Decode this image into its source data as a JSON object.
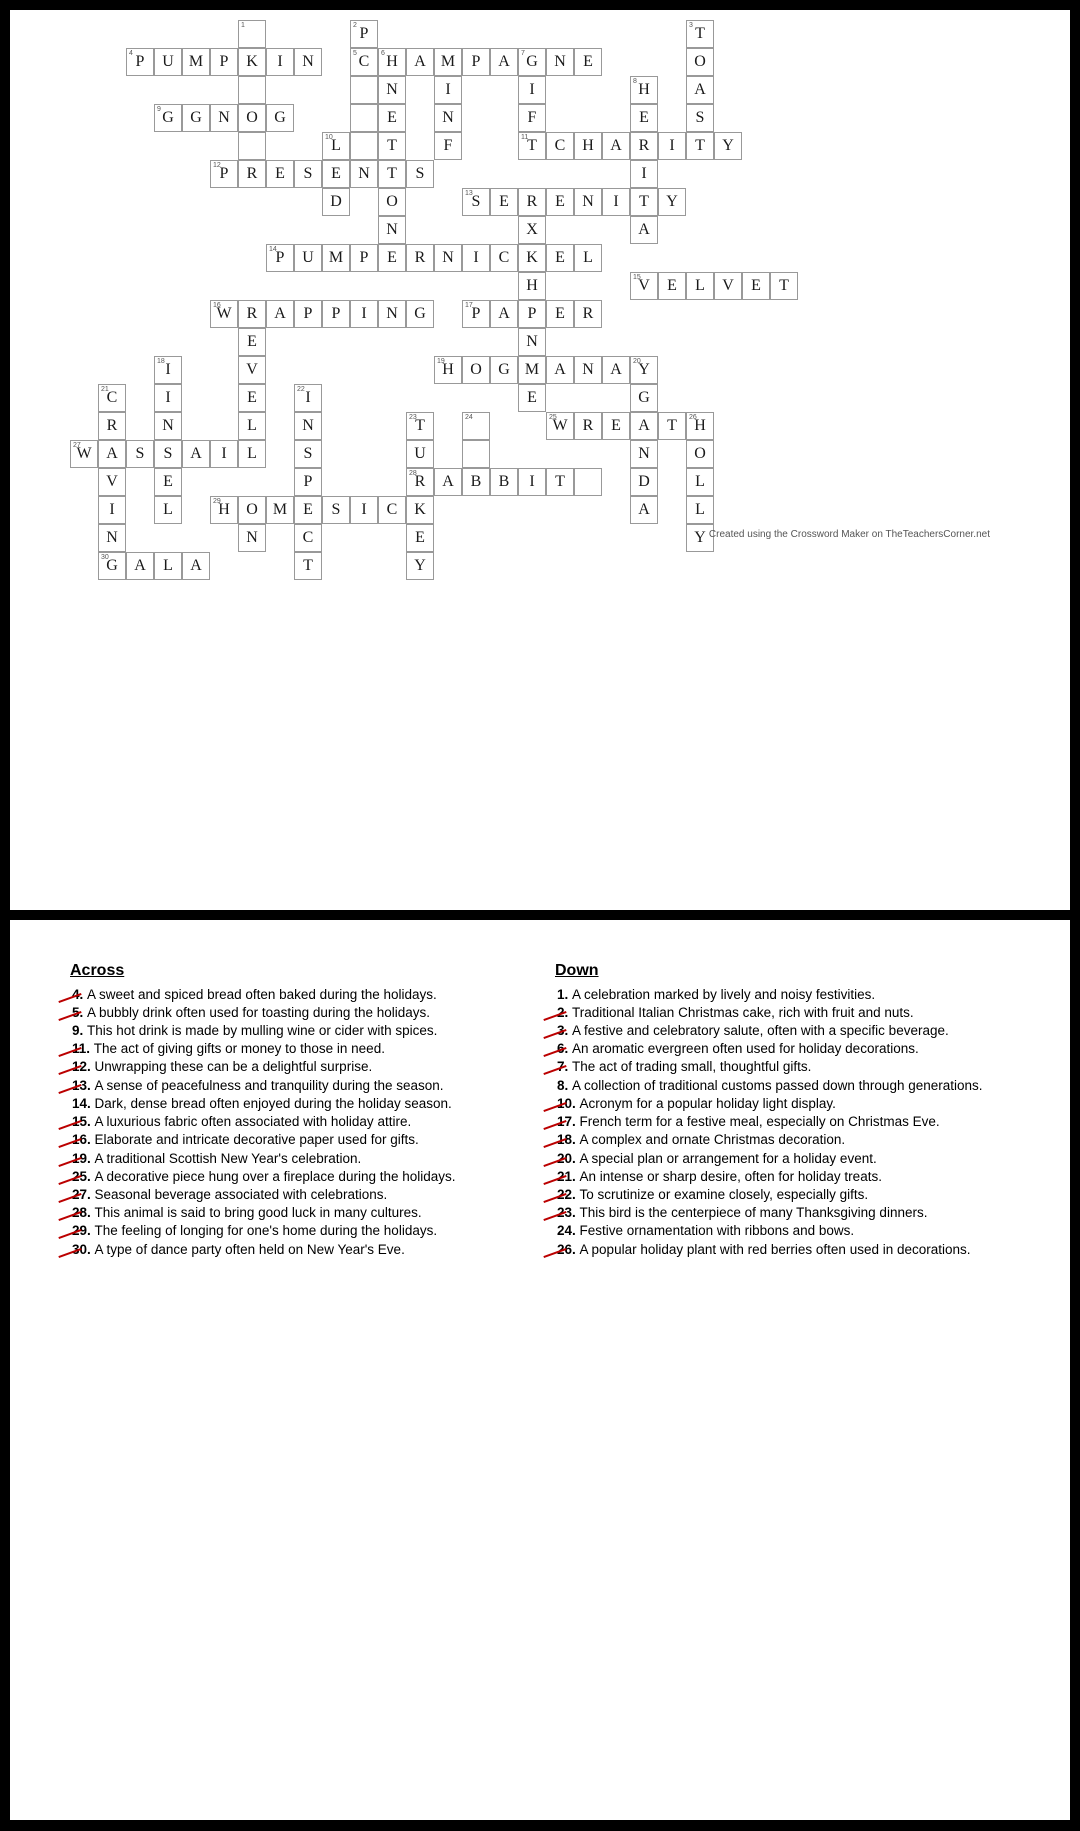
{
  "credit_text": "Created using the Crossword Maker on TheTeachersCorner.net",
  "cell_size": 28,
  "grid_origin": {
    "col_offset": 0,
    "row_offset": 0
  },
  "cells": [
    {
      "r": 0,
      "c": 6,
      "n": "1",
      "l": ""
    },
    {
      "r": 0,
      "c": 10,
      "n": "2",
      "l": "P"
    },
    {
      "r": 0,
      "c": 22,
      "n": "3",
      "l": "T"
    },
    {
      "r": 1,
      "c": 2,
      "n": "4",
      "l": "P"
    },
    {
      "r": 1,
      "c": 3,
      "l": "U"
    },
    {
      "r": 1,
      "c": 4,
      "l": "M"
    },
    {
      "r": 1,
      "c": 5,
      "l": "P"
    },
    {
      "r": 1,
      "c": 6,
      "l": "K"
    },
    {
      "r": 1,
      "c": 7,
      "l": "I"
    },
    {
      "r": 1,
      "c": 8,
      "l": "N"
    },
    {
      "r": 1,
      "c": 10,
      "n": "5",
      "l": "C"
    },
    {
      "r": 1,
      "c": 11,
      "n": "6",
      "l": "H"
    },
    {
      "r": 1,
      "c": 12,
      "l": "A"
    },
    {
      "r": 1,
      "c": 13,
      "l": "M"
    },
    {
      "r": 1,
      "c": 14,
      "l": "P"
    },
    {
      "r": 1,
      "c": 15,
      "l": "A"
    },
    {
      "r": 1,
      "c": 16,
      "n": "7",
      "l": "G"
    },
    {
      "r": 1,
      "c": 17,
      "l": "N"
    },
    {
      "r": 1,
      "c": 18,
      "l": "E"
    },
    {
      "r": 1,
      "c": 22,
      "l": "O"
    },
    {
      "r": 2,
      "c": 6,
      "l": ""
    },
    {
      "r": 2,
      "c": 10,
      "l": ""
    },
    {
      "r": 2,
      "c": 11,
      "l": "N"
    },
    {
      "r": 2,
      "c": 13,
      "l": "I"
    },
    {
      "r": 2,
      "c": 16,
      "l": "I"
    },
    {
      "r": 2,
      "c": 20,
      "n": "8",
      "l": "H"
    },
    {
      "r": 2,
      "c": 22,
      "l": "A"
    },
    {
      "r": 3,
      "c": 3,
      "n": "9",
      "l": "G"
    },
    {
      "r": 3,
      "c": 4,
      "l": "G"
    },
    {
      "r": 3,
      "c": 5,
      "l": "N"
    },
    {
      "r": 3,
      "c": 6,
      "l": "O"
    },
    {
      "r": 3,
      "c": 7,
      "l": "G"
    },
    {
      "r": 3,
      "c": 10,
      "l": ""
    },
    {
      "r": 3,
      "c": 11,
      "l": "E"
    },
    {
      "r": 3,
      "c": 13,
      "l": "N"
    },
    {
      "r": 3,
      "c": 16,
      "l": "F"
    },
    {
      "r": 3,
      "c": 20,
      "l": "E"
    },
    {
      "r": 3,
      "c": 22,
      "l": "S"
    },
    {
      "r": 4,
      "c": 6,
      "l": ""
    },
    {
      "r": 4,
      "c": 9,
      "n": "10",
      "l": "L"
    },
    {
      "r": 4,
      "c": 10,
      "l": ""
    },
    {
      "r": 4,
      "c": 11,
      "l": "T"
    },
    {
      "r": 4,
      "c": 13,
      "l": "F"
    },
    {
      "r": 4,
      "c": 16,
      "n": "11",
      "l": "T"
    },
    {
      "r": 4,
      "c": 17,
      "l": "C"
    },
    {
      "r": 4,
      "c": 18,
      "l": "H"
    },
    {
      "r": 4,
      "c": 19,
      "l": "A"
    },
    {
      "r": 4,
      "c": 20,
      "l": "R"
    },
    {
      "r": 4,
      "c": 21,
      "l": "I"
    },
    {
      "r": 4,
      "c": 22,
      "l": "T"
    },
    {
      "r": 4,
      "c": 23,
      "l": "Y"
    },
    {
      "r": 5,
      "c": 5,
      "n": "12",
      "l": "P"
    },
    {
      "r": 5,
      "c": 6,
      "l": "R"
    },
    {
      "r": 5,
      "c": 7,
      "l": "E"
    },
    {
      "r": 5,
      "c": 8,
      "l": "S"
    },
    {
      "r": 5,
      "c": 9,
      "l": "E"
    },
    {
      "r": 5,
      "c": 10,
      "l": "N"
    },
    {
      "r": 5,
      "c": 11,
      "l": "T"
    },
    {
      "r": 5,
      "c": 12,
      "l": "S"
    },
    {
      "r": 5,
      "c": 20,
      "l": "I"
    },
    {
      "r": 6,
      "c": 9,
      "l": "D"
    },
    {
      "r": 6,
      "c": 11,
      "l": "O"
    },
    {
      "r": 6,
      "c": 14,
      "n": "13",
      "l": "S"
    },
    {
      "r": 6,
      "c": 15,
      "l": "E"
    },
    {
      "r": 6,
      "c": 16,
      "l": "R"
    },
    {
      "r": 6,
      "c": 17,
      "l": "E"
    },
    {
      "r": 6,
      "c": 18,
      "l": "N"
    },
    {
      "r": 6,
      "c": 19,
      "l": "I"
    },
    {
      "r": 6,
      "c": 20,
      "l": "T"
    },
    {
      "r": 6,
      "c": 21,
      "l": "Y"
    },
    {
      "r": 7,
      "c": 11,
      "l": "N"
    },
    {
      "r": 7,
      "c": 16,
      "l": "X"
    },
    {
      "r": 7,
      "c": 20,
      "l": "A"
    },
    {
      "r": 8,
      "c": 7,
      "n": "14",
      "l": "P"
    },
    {
      "r": 8,
      "c": 8,
      "l": "U"
    },
    {
      "r": 8,
      "c": 9,
      "l": "M"
    },
    {
      "r": 8,
      "c": 10,
      "l": "P"
    },
    {
      "r": 8,
      "c": 11,
      "l": "E"
    },
    {
      "r": 8,
      "c": 12,
      "l": "R"
    },
    {
      "r": 8,
      "c": 13,
      "l": "N"
    },
    {
      "r": 8,
      "c": 14,
      "l": "I"
    },
    {
      "r": 8,
      "c": 15,
      "l": "C"
    },
    {
      "r": 8,
      "c": 16,
      "l": "K"
    },
    {
      "r": 8,
      "c": 17,
      "l": "E"
    },
    {
      "r": 8,
      "c": 18,
      "l": "L"
    },
    {
      "r": 9,
      "c": 16,
      "l": "H"
    },
    {
      "r": 9,
      "c": 20,
      "n": "15",
      "l": "V"
    },
    {
      "r": 9,
      "c": 21,
      "l": "E"
    },
    {
      "r": 9,
      "c": 22,
      "l": "L"
    },
    {
      "r": 9,
      "c": 23,
      "l": "V"
    },
    {
      "r": 9,
      "c": 24,
      "l": "E"
    },
    {
      "r": 9,
      "c": 25,
      "l": "T"
    },
    {
      "r": 10,
      "c": 5,
      "n": "16",
      "l": "W"
    },
    {
      "r": 10,
      "c": 6,
      "l": "R"
    },
    {
      "r": 10,
      "c": 7,
      "l": "A"
    },
    {
      "r": 10,
      "c": 8,
      "l": "P"
    },
    {
      "r": 10,
      "c": 9,
      "l": "P"
    },
    {
      "r": 10,
      "c": 10,
      "l": "I"
    },
    {
      "r": 10,
      "c": 11,
      "l": "N"
    },
    {
      "r": 10,
      "c": 12,
      "l": "G"
    },
    {
      "r": 10,
      "c": 14,
      "n": "17",
      "l": "P"
    },
    {
      "r": 10,
      "c": 15,
      "l": "A"
    },
    {
      "r": 10,
      "c": 16,
      "l": "P"
    },
    {
      "r": 10,
      "c": 17,
      "l": "E"
    },
    {
      "r": 10,
      "c": 18,
      "l": "R"
    },
    {
      "r": 11,
      "c": 6,
      "l": "E"
    },
    {
      "r": 11,
      "c": 16,
      "l": "N"
    },
    {
      "r": 12,
      "c": 3,
      "n": "18",
      "l": "I"
    },
    {
      "r": 12,
      "c": 6,
      "l": "V"
    },
    {
      "r": 12,
      "c": 13,
      "n": "19",
      "l": "H"
    },
    {
      "r": 12,
      "c": 14,
      "l": "O"
    },
    {
      "r": 12,
      "c": 15,
      "l": "G"
    },
    {
      "r": 12,
      "c": 16,
      "l": "M"
    },
    {
      "r": 12,
      "c": 17,
      "l": "A"
    },
    {
      "r": 12,
      "c": 18,
      "l": "N"
    },
    {
      "r": 12,
      "c": 19,
      "l": "A"
    },
    {
      "r": 12,
      "c": 20,
      "n": "20",
      "l": "Y"
    },
    {
      "r": 13,
      "c": 1,
      "n": "21",
      "l": "C"
    },
    {
      "r": 13,
      "c": 3,
      "l": "I"
    },
    {
      "r": 13,
      "c": 6,
      "l": "E"
    },
    {
      "r": 13,
      "c": 8,
      "n": "22",
      "l": "I"
    },
    {
      "r": 13,
      "c": 16,
      "l": "E"
    },
    {
      "r": 13,
      "c": 20,
      "l": "G"
    },
    {
      "r": 14,
      "c": 1,
      "l": "R"
    },
    {
      "r": 14,
      "c": 3,
      "l": "N"
    },
    {
      "r": 14,
      "c": 6,
      "l": "L"
    },
    {
      "r": 14,
      "c": 8,
      "l": "N"
    },
    {
      "r": 14,
      "c": 12,
      "n": "23",
      "l": "T"
    },
    {
      "r": 14,
      "c": 14,
      "n": "24",
      "l": ""
    },
    {
      "r": 14,
      "c": 17,
      "n": "25",
      "l": "W"
    },
    {
      "r": 14,
      "c": 18,
      "l": "R"
    },
    {
      "r": 14,
      "c": 19,
      "l": "E"
    },
    {
      "r": 14,
      "c": 20,
      "l": "A"
    },
    {
      "r": 14,
      "c": 21,
      "l": "T"
    },
    {
      "r": 14,
      "c": 22,
      "n": "26",
      "l": "H"
    },
    {
      "r": 15,
      "c": 0,
      "n": "27",
      "l": "W"
    },
    {
      "r": 15,
      "c": 1,
      "l": "A"
    },
    {
      "r": 15,
      "c": 2,
      "l": "S"
    },
    {
      "r": 15,
      "c": 3,
      "l": "S"
    },
    {
      "r": 15,
      "c": 4,
      "l": "A"
    },
    {
      "r": 15,
      "c": 5,
      "l": "I"
    },
    {
      "r": 15,
      "c": 6,
      "l": "L"
    },
    {
      "r": 15,
      "c": 8,
      "l": "S"
    },
    {
      "r": 15,
      "c": 12,
      "l": "U"
    },
    {
      "r": 15,
      "c": 14,
      "l": ""
    },
    {
      "r": 15,
      "c": 20,
      "l": "N"
    },
    {
      "r": 15,
      "c": 22,
      "l": "O"
    },
    {
      "r": 16,
      "c": 1,
      "l": "V"
    },
    {
      "r": 16,
      "c": 3,
      "l": "E"
    },
    {
      "r": 16,
      "c": 8,
      "l": "P"
    },
    {
      "r": 16,
      "c": 12,
      "n": "28",
      "l": "R"
    },
    {
      "r": 16,
      "c": 13,
      "l": "A"
    },
    {
      "r": 16,
      "c": 14,
      "l": "B"
    },
    {
      "r": 16,
      "c": 15,
      "l": "B"
    },
    {
      "r": 16,
      "c": 16,
      "l": "I"
    },
    {
      "r": 16,
      "c": 17,
      "l": "T"
    },
    {
      "r": 16,
      "c": 18,
      "l": ""
    },
    {
      "r": 16,
      "c": 20,
      "l": "D"
    },
    {
      "r": 16,
      "c": 22,
      "l": "L"
    },
    {
      "r": 17,
      "c": 1,
      "l": "I"
    },
    {
      "r": 17,
      "c": 3,
      "l": "L"
    },
    {
      "r": 17,
      "c": 5,
      "n": "29",
      "l": "H"
    },
    {
      "r": 17,
      "c": 6,
      "l": "O"
    },
    {
      "r": 17,
      "c": 7,
      "l": "M"
    },
    {
      "r": 17,
      "c": 8,
      "l": "E"
    },
    {
      "r": 17,
      "c": 9,
      "l": "S"
    },
    {
      "r": 17,
      "c": 10,
      "l": "I"
    },
    {
      "r": 17,
      "c": 11,
      "l": "C"
    },
    {
      "r": 17,
      "c": 12,
      "l": "K"
    },
    {
      "r": 17,
      "c": 20,
      "l": "A"
    },
    {
      "r": 17,
      "c": 22,
      "l": "L"
    },
    {
      "r": 18,
      "c": 1,
      "l": "N"
    },
    {
      "r": 18,
      "c": 6,
      "l": "N"
    },
    {
      "r": 18,
      "c": 8,
      "l": "C"
    },
    {
      "r": 18,
      "c": 12,
      "l": "E"
    },
    {
      "r": 18,
      "c": 22,
      "l": "Y"
    },
    {
      "r": 19,
      "c": 1,
      "n": "30",
      "l": "G"
    },
    {
      "r": 19,
      "c": 2,
      "l": "A"
    },
    {
      "r": 19,
      "c": 3,
      "l": "L"
    },
    {
      "r": 19,
      "c": 4,
      "l": "A"
    },
    {
      "r": 19,
      "c": 8,
      "l": "T"
    },
    {
      "r": 19,
      "c": 12,
      "l": "Y"
    }
  ],
  "clues": {
    "across_title": "Across",
    "down_title": "Down",
    "across": [
      {
        "n": "4",
        "text": "A sweet and spiced bread often baked during the holidays.",
        "strike": true
      },
      {
        "n": "5",
        "text": "A bubbly drink often used for toasting during the holidays.",
        "strike": true
      },
      {
        "n": "9",
        "text": "This hot drink is made by mulling wine or cider with spices.",
        "strike": false
      },
      {
        "n": "11",
        "text": "The act of giving gifts or money to those in need.",
        "strike": true
      },
      {
        "n": "12",
        "text": "Unwrapping these can be a delightful surprise.",
        "strike": true
      },
      {
        "n": "13",
        "text": "A sense of peacefulness and tranquility during the season.",
        "strike": true
      },
      {
        "n": "14",
        "text": "Dark, dense bread often enjoyed during the holiday season.",
        "strike": false
      },
      {
        "n": "15",
        "text": "A luxurious fabric often associated with holiday attire.",
        "strike": true
      },
      {
        "n": "16",
        "text": "Elaborate and intricate decorative paper used for gifts.",
        "strike": true
      },
      {
        "n": "19",
        "text": "A traditional Scottish New Year's celebration.",
        "strike": true
      },
      {
        "n": "25",
        "text": "A decorative piece hung over a fireplace during the holidays.",
        "strike": true
      },
      {
        "n": "27",
        "text": "Seasonal beverage associated with celebrations.",
        "strike": true
      },
      {
        "n": "28",
        "text": "This animal is said to bring good luck in many cultures.",
        "strike": true
      },
      {
        "n": "29",
        "text": "The feeling of longing for one's home during the holidays.",
        "strike": true
      },
      {
        "n": "30",
        "text": "A type of dance party often held on New Year's Eve.",
        "strike": true
      }
    ],
    "down": [
      {
        "n": "1",
        "text": "A celebration marked by lively and noisy festivities.",
        "strike": false
      },
      {
        "n": "2",
        "text": "Traditional Italian Christmas cake, rich with fruit and nuts.",
        "strike": true
      },
      {
        "n": "3",
        "text": "A festive and celebratory salute, often with a specific beverage.",
        "strike": true
      },
      {
        "n": "6",
        "text": "An aromatic evergreen often used for holiday decorations.",
        "strike": true
      },
      {
        "n": "7",
        "text": "The act of trading small, thoughtful gifts.",
        "strike": true
      },
      {
        "n": "8",
        "text": "A collection of traditional customs passed down through generations.",
        "strike": false
      },
      {
        "n": "10",
        "text": "Acronym for a popular holiday light display.",
        "strike": true
      },
      {
        "n": "17",
        "text": "French term for a festive meal, especially on Christmas Eve.",
        "strike": true
      },
      {
        "n": "18",
        "text": "A complex and ornate Christmas decoration.",
        "strike": true
      },
      {
        "n": "20",
        "text": "A special plan or arrangement for a holiday event.",
        "strike": true
      },
      {
        "n": "21",
        "text": "An intense or sharp desire, often for holiday treats.",
        "strike": true
      },
      {
        "n": "22",
        "text": "To scrutinize or examine closely, especially gifts.",
        "strike": true
      },
      {
        "n": "23",
        "text": "This bird is the centerpiece of many Thanksgiving dinners.",
        "strike": true
      },
      {
        "n": "24",
        "text": "Festive ornamentation with ribbons and bows.",
        "strike": false
      },
      {
        "n": "26",
        "text": "A popular holiday plant with red berries often used in decorations.",
        "strike": true
      }
    ]
  }
}
